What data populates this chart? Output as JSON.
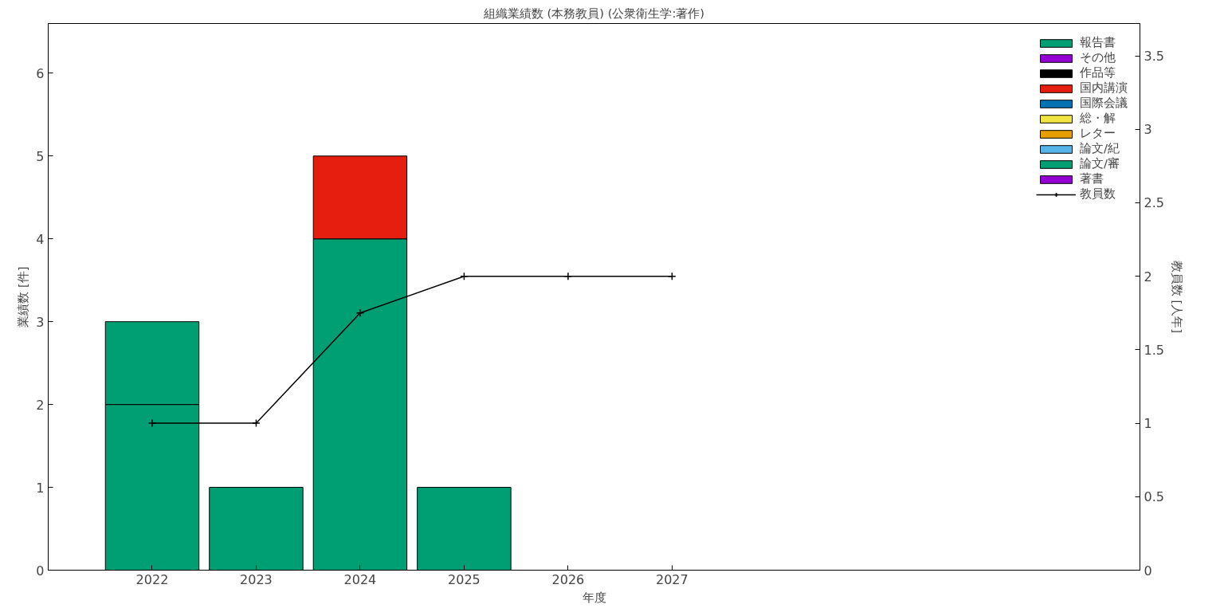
{
  "chart_data": {
    "type": "bar",
    "stacked": true,
    "title": "組織業績数 (本務教員) (公衆衛生学:著作)",
    "xlabel": "年度",
    "ylabel": "業績数 [件]",
    "y2label": "教員数 [人年]",
    "x": [
      2022,
      2023,
      2024,
      2025,
      2026,
      2027
    ],
    "series": [
      {
        "name": "報告書",
        "color": "#009e73",
        "values": [
          2,
          1,
          4,
          1,
          0,
          0
        ]
      },
      {
        "name": "その他",
        "color": "#9400d3",
        "values": [
          0,
          0,
          0,
          0,
          0,
          0
        ]
      },
      {
        "name": "作品等",
        "color": "#000000",
        "values": [
          0,
          0,
          0,
          0,
          0,
          0
        ]
      },
      {
        "name": "国内講演",
        "color": "#e51e10",
        "values": [
          0,
          0,
          1,
          0,
          0,
          0
        ]
      },
      {
        "name": "国際会議",
        "color": "#0072b2",
        "values": [
          0,
          0,
          0,
          0,
          0,
          0
        ]
      },
      {
        "name": "総・解",
        "color": "#f0e442",
        "values": [
          0,
          0,
          0,
          0,
          0,
          0
        ]
      },
      {
        "name": "レター",
        "color": "#e69f00",
        "values": [
          0,
          0,
          0,
          0,
          0,
          0
        ]
      },
      {
        "name": "論文/紀",
        "color": "#56b4e9",
        "values": [
          0,
          0,
          0,
          0,
          0,
          0
        ]
      },
      {
        "name": "論文/審",
        "color": "#009e73",
        "values": [
          1,
          0,
          0,
          0,
          0,
          0
        ]
      },
      {
        "name": "著書",
        "color": "#9400d3",
        "values": [
          0,
          0,
          0,
          0,
          0,
          0
        ]
      },
      {
        "name": "教員数",
        "type": "line",
        "axis": "y2",
        "color": "#000000",
        "marker": "cross",
        "values": [
          1,
          1,
          1.75,
          2,
          2,
          2
        ]
      }
    ],
    "xlim": [
      2021,
      2031.5
    ],
    "xticks": [
      2022,
      2023,
      2024,
      2025,
      2026,
      2027
    ],
    "ylim": [
      0,
      6.6
    ],
    "yticks": [
      0,
      1,
      2,
      3,
      4,
      5,
      6
    ],
    "y2lim": [
      0,
      3.72
    ],
    "y2ticks": [
      0,
      0.5,
      1,
      1.5,
      2,
      2.5,
      3,
      3.5
    ],
    "grid": false,
    "legend": "top right"
  }
}
